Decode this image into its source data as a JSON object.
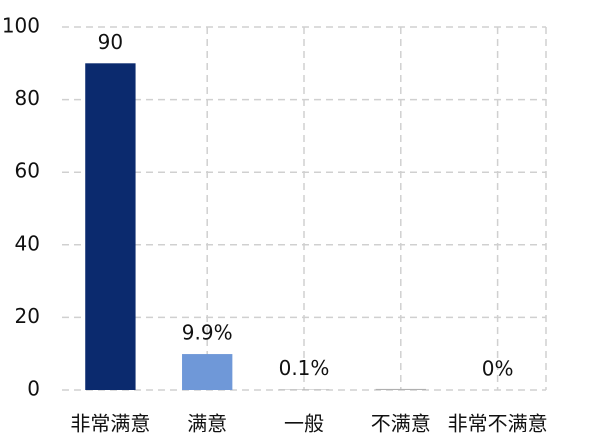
{
  "chart_data": {
    "type": "bar",
    "categories": [
      "非常满意",
      "满意",
      "一般",
      "不满意",
      "非常不满意"
    ],
    "values": [
      90,
      9.9,
      0.1,
      0.3,
      0
    ],
    "value_labels": [
      "90",
      "9.9%",
      "0.1%",
      null,
      "0%"
    ],
    "colors": [
      "#0b2a6e",
      "#6f98d8",
      "#9a9a9a",
      "#b0b0b0",
      "#b0b0b0"
    ],
    "ylim": [
      0,
      100
    ],
    "yticks": [
      0,
      20,
      40,
      60,
      80,
      100
    ],
    "grid": true
  }
}
